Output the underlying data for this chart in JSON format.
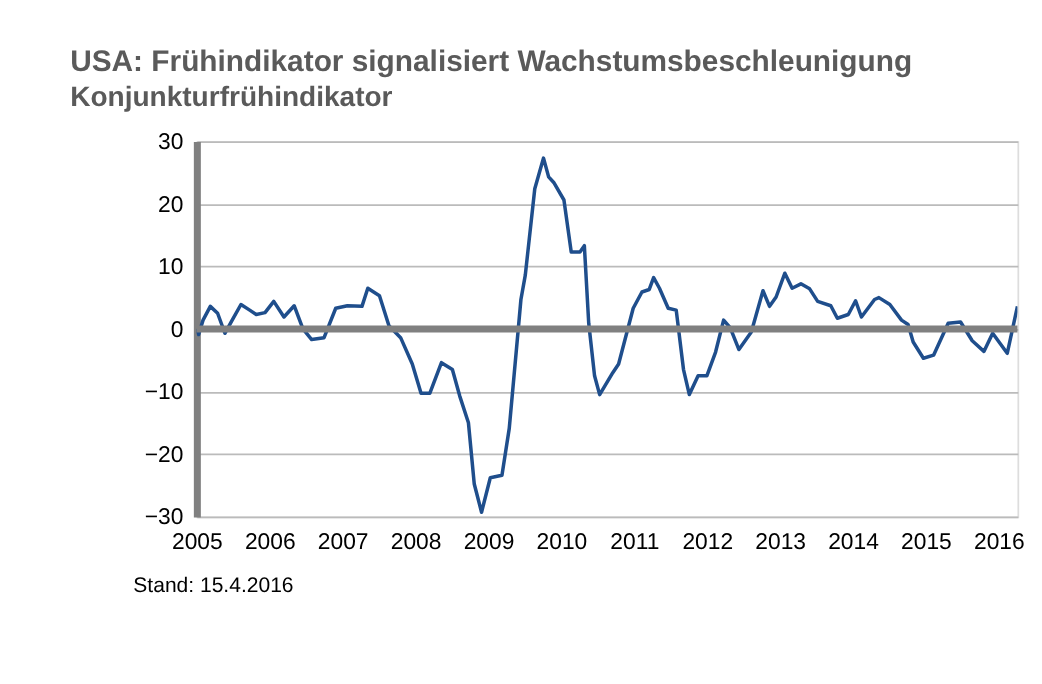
{
  "chart_data": {
    "type": "line",
    "title": "USA: Frühindikator signalisiert Wachstumsbeschleunigung",
    "subtitle": "Konjunkturfrühindikator",
    "annotations": [
      "Stand: 15.4.2016"
    ],
    "x": [
      2005.0,
      2005.03,
      2005.09,
      2005.19,
      2005.29,
      2005.39,
      2005.49,
      2005.61,
      2005.73,
      2005.82,
      2005.94,
      2006.06,
      2006.2,
      2006.34,
      2006.46,
      2006.58,
      2006.75,
      2006.91,
      2007.07,
      2007.27,
      2007.35,
      2007.51,
      2007.64,
      2007.8,
      2007.96,
      2008.08,
      2008.2,
      2008.36,
      2008.51,
      2008.61,
      2008.73,
      2008.81,
      2008.91,
      2009.03,
      2009.19,
      2009.29,
      2009.41,
      2009.45,
      2009.51,
      2009.64,
      2009.76,
      2009.83,
      2009.9,
      2010.04,
      2010.14,
      2010.26,
      2010.32,
      2010.38,
      2010.46,
      2010.53,
      2010.71,
      2010.79,
      2010.99,
      2011.11,
      2011.21,
      2011.27,
      2011.35,
      2011.47,
      2011.58,
      2011.68,
      2011.76,
      2011.88,
      2012.0,
      2012.12,
      2012.23,
      2012.32,
      2012.44,
      2012.61,
      2012.77,
      2012.86,
      2012.95,
      2013.07,
      2013.17,
      2013.29,
      2013.41,
      2013.52,
      2013.7,
      2013.79,
      2013.94,
      2014.04,
      2014.12,
      2014.3,
      2014.36,
      2014.51,
      2014.67,
      2014.76,
      2014.83,
      2014.97,
      2015.11,
      2015.31,
      2015.48,
      2015.64,
      2015.8,
      2015.92,
      2016.12,
      2016.26
    ],
    "values": [
      0,
      -0.9,
      1.4,
      3.6,
      2.5,
      -0.7,
      1.4,
      3.9,
      3.0,
      2.3,
      2.6,
      4.4,
      1.9,
      3.7,
      0,
      -1.7,
      -1.4,
      3.3,
      3.7,
      3.6,
      6.5,
      5.3,
      0.5,
      -1.4,
      -5.6,
      -10.3,
      -10.3,
      -5.4,
      -6.5,
      -10.7,
      -15,
      -24.8,
      -29.3,
      -23.8,
      -23.4,
      -15.9,
      -0.5,
      4.7,
      8.6,
      22.4,
      27.3,
      24.3,
      23.4,
      20.6,
      12.3,
      12.3,
      13.3,
      0.9,
      -7.5,
      -10.5,
      -7,
      -5.6,
      3.3,
      5.9,
      6.3,
      8.2,
      6.5,
      3.3,
      3.0,
      -6.5,
      -10.5,
      -7.5,
      -7.5,
      -3.7,
      1.4,
      0.2,
      -3.3,
      -0.5,
      6.1,
      3.6,
      5.1,
      8.9,
      6.5,
      7.2,
      6.4,
      4.4,
      3.7,
      1.7,
      2.3,
      4.5,
      1.9,
      4.7,
      5.0,
      3.9,
      1.4,
      0.7,
      -2.1,
      -4.7,
      -4.2,
      0.9,
      1.1,
      -1.9,
      -3.6,
      -0.7,
      -3.9,
      3.6
    ],
    "color": "#1f4e8c",
    "line_style": "solid",
    "marker": "none",
    "xlim": [
      2005,
      2016.26
    ],
    "xticks": [
      2005,
      2006,
      2007,
      2008,
      2009,
      2010,
      2011,
      2012,
      2013,
      2014,
      2015,
      2016
    ],
    "ylim": [
      -30,
      30
    ],
    "yticks": [
      -30,
      -20,
      -10,
      0,
      10,
      20,
      30
    ],
    "grid": "y",
    "ref_lines": [
      {
        "axis": "y",
        "value": 0,
        "color": "#808080"
      }
    ]
  }
}
